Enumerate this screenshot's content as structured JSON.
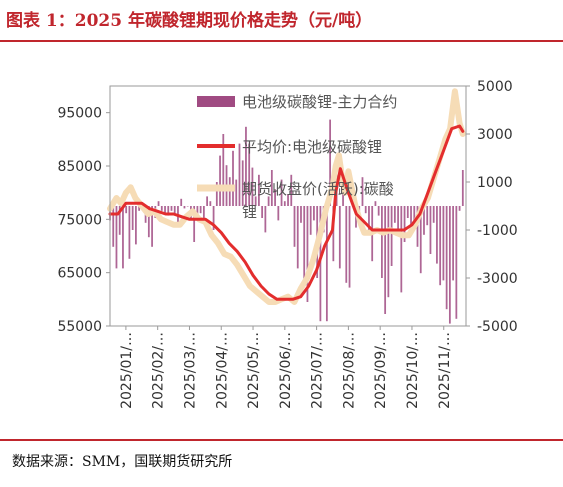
{
  "header": {
    "title": "图表 1：2025 年碳酸锂期现价格走势（元/吨）"
  },
  "footer": {
    "source": "数据来源：SMM，国联期货研究所"
  },
  "colors": {
    "accent": "#c0262d",
    "basis_bar": "#a04b82",
    "spot_line": "#e32d2d",
    "futures_line": "#f6dcb6"
  },
  "chart_data": {
    "type": "line",
    "x_tick_labels": [
      "2025/01/…",
      "2025/02/…",
      "2025/03/…",
      "2025/04/…",
      "2025/05/…",
      "2025/06/…",
      "2025/07/…",
      "2025/08/…",
      "2025/09/…",
      "2025/10/…",
      "2025/11/…"
    ],
    "left_axis": {
      "ylim": [
        55000,
        100000
      ],
      "ticks": [
        55000,
        65000,
        75000,
        85000,
        95000
      ]
    },
    "right_axis": {
      "ylim": [
        -5000,
        5000
      ],
      "ticks": [
        -5000,
        -3000,
        -1000,
        1000,
        3000,
        5000
      ]
    },
    "x_range": [
      0,
      11.2
    ],
    "legend": {
      "placement": "top-right",
      "entries": [
        "电池级碳酸锂-主力合约",
        "平均价:电池级碳酸锂",
        "期货收盘价(活跃):碳酸锂"
      ]
    },
    "series": [
      {
        "name": "平均价:电池级碳酸锂",
        "axis": "left",
        "type": "line",
        "x": [
          0.0,
          0.25,
          0.5,
          0.75,
          1.0,
          1.25,
          1.5,
          1.75,
          2.0,
          2.25,
          2.5,
          2.75,
          3.0,
          3.25,
          3.5,
          3.75,
          4.0,
          4.25,
          4.5,
          4.75,
          5.0,
          5.25,
          5.5,
          5.75,
          6.0,
          6.25,
          6.5,
          6.75,
          7.0,
          7.1,
          7.25,
          7.5,
          7.75,
          8.0,
          8.25,
          8.5,
          8.75,
          9.0,
          9.25,
          9.5,
          9.75,
          10.0,
          10.25,
          10.5,
          10.75,
          11.0,
          11.1
        ],
        "values": [
          76000,
          76000,
          78000,
          78000,
          78000,
          77000,
          76500,
          76000,
          76000,
          75500,
          75000,
          75000,
          75000,
          74000,
          72500,
          70500,
          69000,
          67000,
          64500,
          62500,
          61000,
          60000,
          60000,
          60000,
          60500,
          62500,
          65500,
          70000,
          73000,
          80000,
          84500,
          80000,
          76000,
          74500,
          73000,
          73000,
          73000,
          73000,
          73000,
          74000,
          76000,
          80000,
          84000,
          88000,
          92000,
          92500,
          91500
        ]
      },
      {
        "name": "期货收盘价(活跃):碳酸锂",
        "axis": "left",
        "type": "line",
        "x": [
          0.0,
          0.2,
          0.35,
          0.5,
          0.65,
          0.8,
          1.0,
          1.2,
          1.4,
          1.6,
          1.8,
          2.0,
          2.2,
          2.4,
          2.6,
          2.8,
          3.0,
          3.2,
          3.4,
          3.6,
          3.8,
          4.0,
          4.2,
          4.4,
          4.6,
          4.8,
          5.0,
          5.2,
          5.4,
          5.6,
          5.8,
          6.0,
          6.2,
          6.4,
          6.6,
          6.8,
          7.0,
          7.1,
          7.2,
          7.3,
          7.4,
          7.5,
          7.6,
          7.7,
          7.8,
          7.9,
          8.0,
          8.2,
          8.4,
          8.6,
          8.8,
          9.0,
          9.2,
          9.4,
          9.6,
          9.8,
          10.0,
          10.2,
          10.4,
          10.55,
          10.7,
          10.85,
          11.0,
          11.1
        ],
        "values": [
          77000,
          79000,
          78000,
          80000,
          81000,
          79000,
          77500,
          76000,
          76500,
          75000,
          74500,
          74000,
          74000,
          75500,
          76500,
          75000,
          74500,
          72000,
          70500,
          68500,
          68000,
          66500,
          64500,
          62500,
          61500,
          60500,
          59500,
          59500,
          60000,
          60500,
          59500,
          62000,
          64000,
          67500,
          72000,
          77000,
          81000,
          85000,
          87000,
          83000,
          80000,
          84000,
          81000,
          78000,
          76000,
          74000,
          72500,
          72500,
          73000,
          72500,
          73000,
          72500,
          72000,
          72000,
          74000,
          77000,
          79000,
          83000,
          87000,
          90000,
          92000,
          99000,
          93000,
          91000
        ]
      },
      {
        "name": "电池级碳酸锂-主力合约",
        "axis": "right",
        "type": "bar",
        "x_range": [
          0.0,
          11.1
        ],
        "values": [
          -600,
          -1700,
          -2600,
          -1200,
          -2600,
          -300,
          -2200,
          -1000,
          -1600,
          -200,
          0,
          -700,
          -1300,
          -1700,
          -500,
          200,
          -200,
          -300,
          -400,
          -200,
          -300,
          -700,
          300,
          -100,
          0,
          -500,
          -1500,
          -600,
          -300,
          -700,
          400,
          200,
          -1000,
          1000,
          2100,
          3000,
          1700,
          1200,
          2300,
          1100,
          2600,
          1900,
          3300,
          2600,
          1600,
          400,
          1300,
          -500,
          -1100,
          400,
          1500,
          700,
          -600,
          1100,
          200,
          500,
          1300,
          -1700,
          -2600,
          -700,
          -3300,
          -4000,
          -1200,
          -600,
          -3000,
          -4800,
          -1100,
          -4800,
          3600,
          -2300,
          1400,
          -2600,
          1400,
          -3200,
          -3400,
          200,
          -900,
          -200,
          1200,
          -300,
          -1000,
          -2300,
          200,
          -400,
          -3000,
          -4500,
          -3800,
          -2500,
          -700,
          -1200,
          -3600,
          -1500,
          -500,
          -1000,
          -600,
          -1700,
          -2800,
          -1200,
          -800,
          -2000,
          -700,
          -2400,
          -3300,
          -3100,
          -4300,
          -4900,
          -3100,
          -4700,
          -200,
          1500
        ]
      }
    ]
  }
}
